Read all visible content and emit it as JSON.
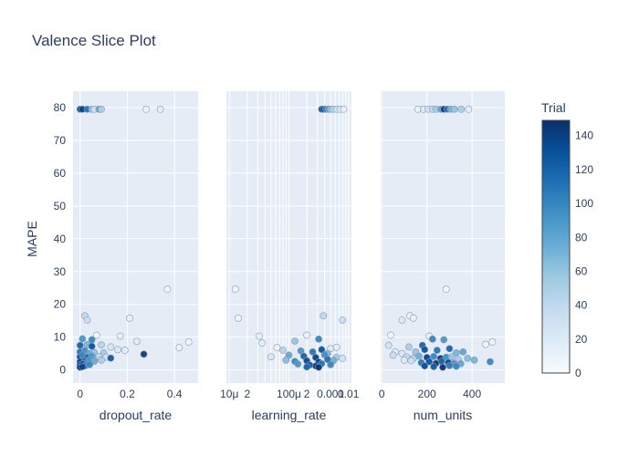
{
  "chart_data": {
    "type": "scatter",
    "title": "Valence Slice Plot",
    "ylabel": "MAPE",
    "ylim": [
      -4,
      85
    ],
    "y_ticks": [
      0,
      10,
      20,
      30,
      40,
      50,
      60,
      70,
      80
    ],
    "colorbar": {
      "title": "Trial",
      "range": [
        0,
        149
      ],
      "ticks": [
        0,
        20,
        40,
        60,
        80,
        100,
        120,
        140
      ]
    },
    "colors": {
      "plot_bg": "#e5ecf6",
      "grid": "#ffffff",
      "low": "#f7fbff",
      "high": "#08306b"
    },
    "panels": [
      {
        "xlabel": "dropout_rate",
        "scale": "linear",
        "xlim": [
          -0.03,
          0.5
        ],
        "x_ticks": [
          0,
          0.2,
          0.4
        ],
        "x_tick_labels": [
          "0",
          "0.2",
          "0.4"
        ],
        "points": [
          [
            0.0,
            79.5,
            128
          ],
          [
            0.01,
            79.5,
            140
          ],
          [
            0.03,
            79.5,
            110
          ],
          [
            0.05,
            79.5,
            60
          ],
          [
            0.06,
            79.5,
            30
          ],
          [
            0.08,
            79.5,
            80
          ],
          [
            0.09,
            79.5,
            50
          ],
          [
            0.28,
            79.5,
            10
          ],
          [
            0.34,
            79.5,
            15
          ],
          [
            0.37,
            24.6,
            5
          ],
          [
            0.02,
            16.5,
            40
          ],
          [
            0.03,
            15.2,
            35
          ],
          [
            0.21,
            15.8,
            12
          ],
          [
            0.07,
            10.6,
            8
          ],
          [
            0.17,
            10.3,
            14
          ],
          [
            0.01,
            9.5,
            90
          ],
          [
            0.05,
            9.2,
            100
          ],
          [
            0.24,
            8.7,
            18
          ],
          [
            0.46,
            8.5,
            6
          ],
          [
            0.0,
            7.5,
            120
          ],
          [
            0.03,
            7.7,
            70
          ],
          [
            0.05,
            7.2,
            130
          ],
          [
            0.09,
            7.6,
            45
          ],
          [
            0.13,
            7.0,
            25
          ],
          [
            0.42,
            6.8,
            9
          ],
          [
            0.16,
            6.2,
            20
          ],
          [
            0.19,
            6.0,
            16
          ],
          [
            0.0,
            5.5,
            110
          ],
          [
            0.02,
            5.9,
            95
          ],
          [
            0.04,
            5.0,
            80
          ],
          [
            0.06,
            5.3,
            60
          ],
          [
            0.1,
            5.2,
            55
          ],
          [
            0.27,
            4.8,
            142
          ],
          [
            0.0,
            4.0,
            135
          ],
          [
            0.01,
            4.5,
            100
          ],
          [
            0.03,
            3.8,
            115
          ],
          [
            0.05,
            4.2,
            90
          ],
          [
            0.07,
            3.5,
            70
          ],
          [
            0.08,
            4.1,
            40
          ],
          [
            0.11,
            3.9,
            30
          ],
          [
            0.13,
            3.6,
            125
          ],
          [
            0.0,
            2.5,
            140
          ],
          [
            0.02,
            2.8,
            120
          ],
          [
            0.03,
            2.4,
            105
          ],
          [
            0.04,
            2.9,
            90
          ],
          [
            0.06,
            2.6,
            75
          ],
          [
            0.09,
            3.0,
            50
          ],
          [
            0.0,
            1.5,
            146
          ],
          [
            0.01,
            1.8,
            130
          ],
          [
            0.02,
            1.2,
            110
          ],
          [
            0.04,
            1.6,
            100
          ],
          [
            0.0,
            0.8,
            145
          ],
          [
            0.01,
            1.0,
            138
          ]
        ]
      },
      {
        "xlabel": "learning_rate",
        "scale": "log",
        "xlim": [
          -4.05,
          -1.95
        ],
        "x_ticks": [
          -4,
          -3.699,
          -3.523,
          -3.398,
          -3.301,
          -3.222,
          -3.155,
          -3.097,
          -3.046,
          -3,
          -2.699,
          -2.523,
          -2.398,
          -2.301,
          -2.222,
          -2.155,
          -2.097,
          -2.046,
          -2
        ],
        "x_tick_labels": [
          "10μ",
          "2",
          "",
          "",
          "",
          "",
          "",
          "",
          "",
          "100μ",
          "2",
          "",
          "",
          "0.001",
          "",
          "",
          "",
          "",
          "0.01"
        ],
        "points": [
          [
            -2.45,
            79.5,
            140
          ],
          [
            -2.42,
            79.5,
            128
          ],
          [
            -2.38,
            79.5,
            100
          ],
          [
            -2.34,
            79.5,
            80
          ],
          [
            -2.3,
            79.5,
            60
          ],
          [
            -2.26,
            79.5,
            45
          ],
          [
            -2.2,
            79.5,
            30
          ],
          [
            -2.14,
            79.5,
            20
          ],
          [
            -2.08,
            79.5,
            12
          ],
          [
            -3.9,
            24.6,
            5
          ],
          [
            -3.85,
            15.8,
            8
          ],
          [
            -2.42,
            16.5,
            40
          ],
          [
            -2.1,
            15.2,
            35
          ],
          [
            -3.5,
            10.3,
            14
          ],
          [
            -2.7,
            10.6,
            12
          ],
          [
            -3.45,
            8.2,
            18
          ],
          [
            -3.2,
            6.8,
            9
          ],
          [
            -2.9,
            8.8,
            60
          ],
          [
            -2.5,
            9.4,
            100
          ],
          [
            -2.3,
            6.5,
            20
          ],
          [
            -2.2,
            6.9,
            15
          ],
          [
            -3.1,
            6.0,
            45
          ],
          [
            -2.8,
            5.8,
            90
          ],
          [
            -2.6,
            5.5,
            110
          ],
          [
            -2.45,
            6.2,
            130
          ],
          [
            -2.35,
            5.0,
            70
          ],
          [
            -3.3,
            4.0,
            25
          ],
          [
            -3.0,
            4.5,
            80
          ],
          [
            -2.75,
            4.2,
            120
          ],
          [
            -2.55,
            3.8,
            140
          ],
          [
            -2.4,
            4.6,
            95
          ],
          [
            -2.2,
            3.9,
            55
          ],
          [
            -2.1,
            3.5,
            30
          ],
          [
            -3.05,
            3.0,
            65
          ],
          [
            -2.9,
            2.6,
            100
          ],
          [
            -2.7,
            2.8,
            135
          ],
          [
            -2.5,
            2.4,
            145
          ],
          [
            -2.35,
            3.2,
            115
          ],
          [
            -2.25,
            2.9,
            75
          ],
          [
            -2.85,
            1.8,
            90
          ],
          [
            -2.65,
            1.5,
            125
          ],
          [
            -2.55,
            1.2,
            140
          ],
          [
            -2.45,
            1.9,
            110
          ],
          [
            -2.3,
            1.6,
            100
          ],
          [
            -2.7,
            0.9,
            120
          ],
          [
            -2.5,
            0.8,
            146
          ]
        ]
      },
      {
        "xlabel": "num_units",
        "scale": "linear",
        "xlim": [
          -5,
          545
        ],
        "x_ticks": [
          0,
          200,
          400
        ],
        "x_tick_labels": [
          "0",
          "200",
          "400"
        ],
        "points": [
          [
            160,
            79.5,
            10
          ],
          [
            185,
            79.5,
            20
          ],
          [
            205,
            79.5,
            30
          ],
          [
            225,
            79.5,
            40
          ],
          [
            240,
            79.5,
            55
          ],
          [
            262,
            79.5,
            80
          ],
          [
            275,
            79.5,
            140
          ],
          [
            290,
            79.5,
            110
          ],
          [
            305,
            79.5,
            70
          ],
          [
            322,
            79.5,
            60
          ],
          [
            352,
            79.5,
            50
          ],
          [
            385,
            79.5,
            15
          ],
          [
            285,
            24.6,
            5
          ],
          [
            125,
            16.5,
            10
          ],
          [
            140,
            15.8,
            12
          ],
          [
            90,
            15.2,
            20
          ],
          [
            40,
            10.6,
            8
          ],
          [
            210,
            10.3,
            14
          ],
          [
            225,
            9.4,
            100
          ],
          [
            275,
            9.2,
            90
          ],
          [
            30,
            7.5,
            30
          ],
          [
            120,
            7.0,
            50
          ],
          [
            180,
            7.5,
            120
          ],
          [
            490,
            8.5,
            6
          ],
          [
            460,
            7.8,
            9
          ],
          [
            60,
            5.5,
            18
          ],
          [
            90,
            5.0,
            25
          ],
          [
            150,
            5.5,
            60
          ],
          [
            190,
            6.2,
            130
          ],
          [
            245,
            6.0,
            110
          ],
          [
            300,
            6.5,
            120
          ],
          [
            330,
            5.2,
            70
          ],
          [
            360,
            5.5,
            80
          ],
          [
            50,
            4.5,
            35
          ],
          [
            110,
            4.0,
            40
          ],
          [
            140,
            3.5,
            45
          ],
          [
            165,
            4.2,
            75
          ],
          [
            200,
            3.8,
            140
          ],
          [
            230,
            4.1,
            100
          ],
          [
            260,
            3.5,
            145
          ],
          [
            285,
            3.9,
            95
          ],
          [
            310,
            4.0,
            60
          ],
          [
            340,
            3.2,
            50
          ],
          [
            380,
            3.5,
            65
          ],
          [
            410,
            3.0,
            70
          ],
          [
            480,
            2.5,
            100
          ],
          [
            100,
            3.0,
            20
          ],
          [
            130,
            2.8,
            30
          ],
          [
            175,
            2.2,
            110
          ],
          [
            210,
            2.5,
            130
          ],
          [
            240,
            2.0,
            146
          ],
          [
            265,
            2.6,
            120
          ],
          [
            295,
            2.2,
            140
          ],
          [
            320,
            2.0,
            90
          ],
          [
            350,
            1.9,
            80
          ],
          [
            190,
            1.2,
            135
          ],
          [
            230,
            1.0,
            125
          ],
          [
            270,
            0.8,
            148
          ],
          [
            300,
            1.3,
            105
          ],
          [
            330,
            1.1,
            100
          ]
        ]
      }
    ]
  }
}
